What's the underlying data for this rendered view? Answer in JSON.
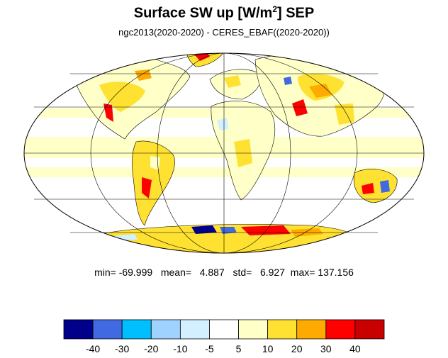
{
  "title": {
    "prefix": "Surface SW up [W/m",
    "superscript": "2",
    "suffix": "]  SEP"
  },
  "subtitle": "ngc2013(2020-2020) - CERES_EBAF((2020-2020))",
  "stats": {
    "min_label": "min=",
    "min": "-69.999",
    "mean_label": "mean=",
    "mean": "4.887",
    "std_label": "std=",
    "std": "6.927",
    "max_label": "max=",
    "max": "137.156"
  },
  "colorbar": {
    "colors": [
      "#00008b",
      "#4169e1",
      "#00bfff",
      "#a0d2ff",
      "#d2f0ff",
      "#ffffff",
      "#ffffc8",
      "#ffe132",
      "#ffaa00",
      "#ff0000",
      "#c80000"
    ],
    "labels": [
      "-40",
      "-30",
      "-20",
      "-10",
      "-5",
      "5",
      "10",
      "20",
      "30",
      "40"
    ]
  },
  "map": {
    "projection": "mollweide",
    "graticule": true,
    "ocean_color": "#ffffff",
    "band_color": "#ffffc8"
  }
}
